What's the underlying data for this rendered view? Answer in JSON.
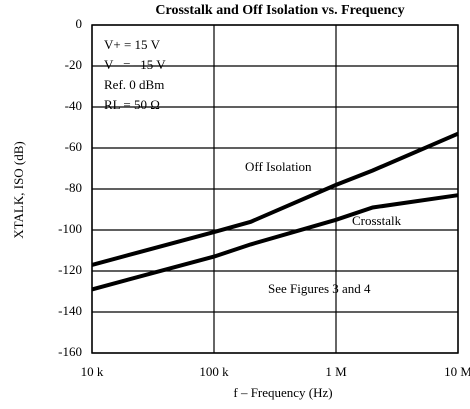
{
  "chart_data": {
    "type": "line",
    "title": "Crosstalk and Off Isolation vs. Frequency",
    "x_label": "f – Frequency (Hz)",
    "y_label": "XTALK, ISO (dB)",
    "log_x": true,
    "grid": true,
    "xlim": [
      10000,
      10000000
    ],
    "xticks": [
      {
        "value": 10000,
        "label": "10 k"
      },
      {
        "value": 100000,
        "label": "100 k"
      },
      {
        "value": 1000000,
        "label": "1 M"
      },
      {
        "value": 10000000,
        "label": "10 M"
      }
    ],
    "ylim": [
      -160,
      0
    ],
    "yticks": [
      -160,
      -140,
      -120,
      -100,
      -80,
      -60,
      -40,
      -20,
      0
    ],
    "x": [
      10000,
      100000,
      200000,
      1000000,
      2000000,
      10000000
    ],
    "series": [
      {
        "name": "Off Isolation",
        "color": "#000000",
        "values": [
          -117,
          -101,
          -96,
          -78,
          -71,
          -53
        ]
      },
      {
        "name": "Crosstalk",
        "color": "#000000",
        "values": [
          -129,
          -113,
          -107,
          -95,
          -89,
          -83
        ]
      }
    ],
    "annotations": [
      "V+ = 15 V",
      "V– = –15 V",
      "Ref. 0 dBm",
      "RL = 50 Ω",
      "See Figures 3 and 4"
    ]
  }
}
